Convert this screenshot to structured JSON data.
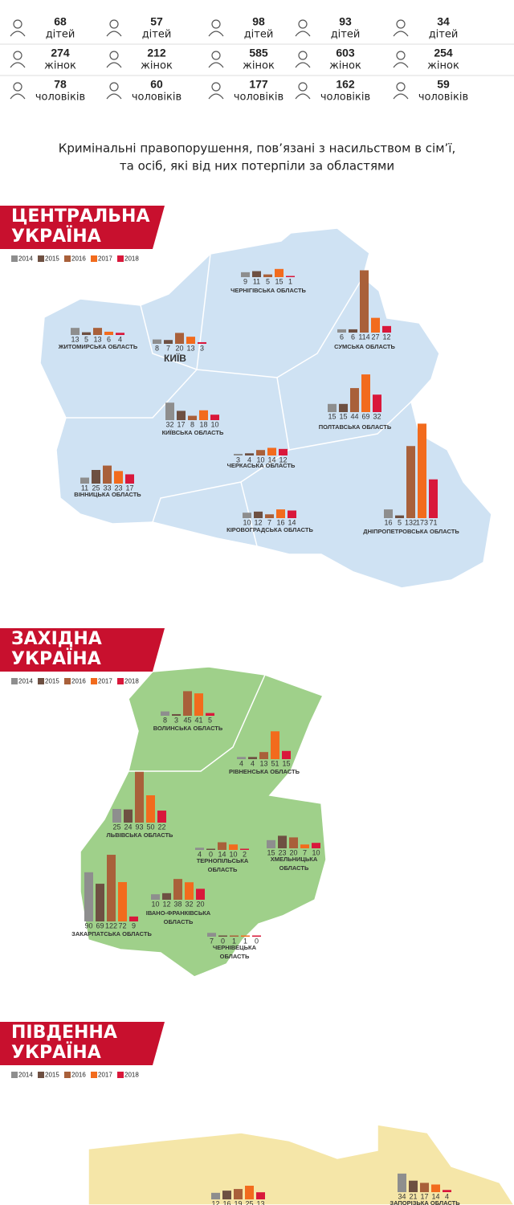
{
  "stats": {
    "labels": [
      "дітей",
      "жінок",
      "чоловіків"
    ],
    "columns": [
      [
        68,
        274,
        78
      ],
      [
        57,
        212,
        60
      ],
      [
        98,
        585,
        177
      ],
      [
        93,
        603,
        162
      ],
      [
        34,
        254,
        59
      ]
    ]
  },
  "title": [
    "Кримінальні правопорушення, пов’язані з насильством в сім’ї,",
    "та осіб, які від них потерпіли за областями"
  ],
  "legend": {
    "years": [
      "2014",
      "2015",
      "2016",
      "2017",
      "2018"
    ],
    "colors": [
      "#8e8e8e",
      "#6e5042",
      "#a9603a",
      "#f26b1d",
      "#d9183b"
    ]
  },
  "sections": [
    {
      "heading": [
        "ЦЕНТРАЛЬНА",
        "УКРАЇНА"
      ],
      "regions": [
        {
          "name": [
            "ЧЕРНІГІВСЬКА ОБЛАСТЬ"
          ],
          "values": [
            9,
            11,
            5,
            15,
            1
          ]
        },
        {
          "name": [
            "ЖИТОМИРСЬКА ОБЛАСТЬ"
          ],
          "values": [
            13,
            5,
            13,
            6,
            4
          ]
        },
        {
          "name": [
            "КИЇВ"
          ],
          "values": [
            8,
            7,
            20,
            13,
            3
          ]
        },
        {
          "name": [
            "СУМСЬКА ОБЛАСТЬ"
          ],
          "values": [
            6,
            6,
            114,
            27,
            12
          ]
        },
        {
          "name": [
            "КИЇВСЬКА ОБЛАСТЬ"
          ],
          "values": [
            32,
            17,
            8,
            18,
            10
          ]
        },
        {
          "name": [
            "ПОЛТАВСЬКА ОБЛАСТЬ"
          ],
          "values": [
            15,
            15,
            44,
            69,
            32
          ]
        },
        {
          "name": [
            "ЧЕРКАСЬКА ОБЛАСТЬ"
          ],
          "values": [
            3,
            4,
            10,
            14,
            12
          ]
        },
        {
          "name": [
            "ВІННИЦЬКА ОБЛАСТЬ"
          ],
          "values": [
            11,
            25,
            33,
            23,
            17
          ]
        },
        {
          "name": [
            "КІРОВОГРАДСЬКА ОБЛАСТЬ"
          ],
          "values": [
            10,
            12,
            7,
            16,
            14
          ]
        },
        {
          "name": [
            "ДНІПРОПЕТРОВСЬКА ОБЛАСТЬ"
          ],
          "values": [
            16,
            5,
            132,
            173,
            71
          ]
        }
      ]
    },
    {
      "heading": [
        "ЗАХІДНА",
        "УКРАЇНА"
      ],
      "regions": [
        {
          "name": [
            "ВОЛИНСЬКА ОБЛАСТЬ"
          ],
          "values": [
            8,
            3,
            45,
            41,
            5
          ]
        },
        {
          "name": [
            "РІВНЕНСЬКА ОБЛАСТЬ"
          ],
          "values": [
            4,
            4,
            13,
            51,
            15
          ]
        },
        {
          "name": [
            "ЛЬВІВСЬКА ОБЛАСТЬ"
          ],
          "values": [
            25,
            24,
            93,
            50,
            22
          ]
        },
        {
          "name": [
            "ТЕРНОПІЛЬСЬКА",
            "ОБЛАСТЬ"
          ],
          "values": [
            4,
            0,
            14,
            10,
            2
          ]
        },
        {
          "name": [
            "ХМЕЛЬНИЦЬКА",
            "ОБЛАСТЬ"
          ],
          "values": [
            15,
            23,
            20,
            7,
            10
          ]
        },
        {
          "name": [
            "ЗАКАРПАТСЬКА ОБЛАСТЬ"
          ],
          "values": [
            90,
            69,
            122,
            72,
            9
          ]
        },
        {
          "name": [
            "ІВАНО-ФРАНКІВСЬКА",
            "ОБЛАСТЬ"
          ],
          "values": [
            10,
            12,
            38,
            32,
            20
          ]
        },
        {
          "name": [
            "ЧЕРНІВЕЦЬКА",
            "ОБЛАСТЬ"
          ],
          "values": [
            7,
            0,
            1,
            1,
            0
          ]
        }
      ]
    },
    {
      "heading": [
        "ПІВДЕННА",
        "УКРАЇНА"
      ],
      "regions": [
        {
          "name": null,
          "values": [
            12,
            16,
            19,
            25,
            13
          ]
        },
        {
          "name": [
            "ЗАПОРІЗЬКА ОБЛАСТЬ"
          ],
          "values": [
            34,
            21,
            17,
            14,
            4
          ]
        }
      ]
    }
  ]
}
